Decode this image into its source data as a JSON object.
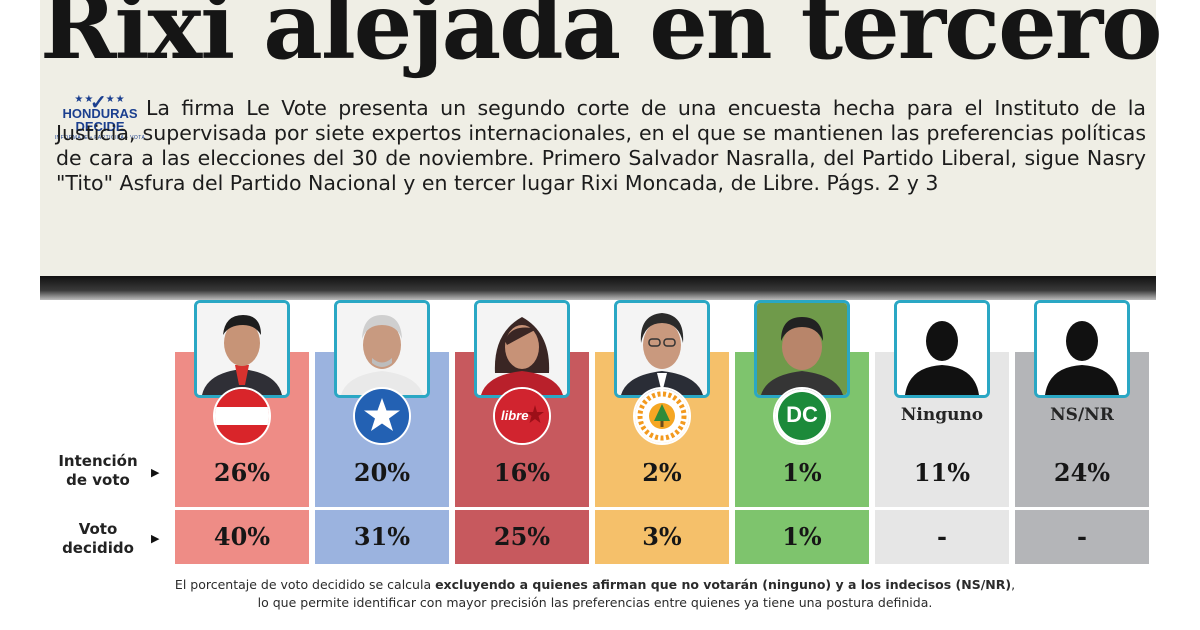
{
  "headline": "Rixi alejada en tercero",
  "logo": {
    "line1": "HONDURAS",
    "line2": "DECIDE",
    "tagline": "INFORMATE • PARTICIPA • VOTA"
  },
  "lead": "La firma Le Vote presenta un segundo corte de una encuesta hecha para el Instituto de la Justicia, supervisada por siete expertos internacionales, en el que se mantienen las preferencias políticas de cara a las elecciones del 30 de noviembre. Primero Salvador Nasralla, del Partido Liberal, sigue Nasry \"Tito\" Asfura del Partido Nacional y en tercer lugar Rixi Moncada, de Libre. Págs. 2 y 3",
  "rows": {
    "intencion": "Intención de voto",
    "decidido": "Voto decidido"
  },
  "arrow": "▶",
  "party_text": {
    "libre": "libre",
    "dc": "DC"
  },
  "text_columns": {
    "ninguno": "Ninguno",
    "nsnr": "NS/NR"
  },
  "colors": {
    "liberal": "#ee8c86",
    "nacional": "#9bb3df",
    "libre": "#c7595e",
    "pinu": "#f5c06a",
    "dc": "#7ec46d",
    "ninguno": "#e6e6e6",
    "nsnr": "#b4b5b8"
  },
  "chart_data": {
    "type": "table",
    "title": "Rixi alejada en tercero",
    "categories": [
      "Partido Liberal",
      "Partido Nacional",
      "Libre",
      "PINU",
      "DC",
      "Ninguno",
      "NS/NR"
    ],
    "series": [
      {
        "name": "Intención de voto",
        "values": [
          "26%",
          "20%",
          "16%",
          "2%",
          "1%",
          "11%",
          "24%"
        ]
      },
      {
        "name": "Voto decidido",
        "values": [
          "40%",
          "31%",
          "25%",
          "3%",
          "1%",
          "-",
          "-"
        ]
      }
    ]
  },
  "footnote": {
    "p1": "El porcentaje de voto decidido se calcula ",
    "p1_bold": "excluyendo a quienes afirman que no votarán (ninguno) y a los indecisos (NS/NR)",
    "p1_end": ",",
    "p2": "lo que permite identificar con mayor precisión las preferencias entre quienes ya tiene una postura definida."
  }
}
